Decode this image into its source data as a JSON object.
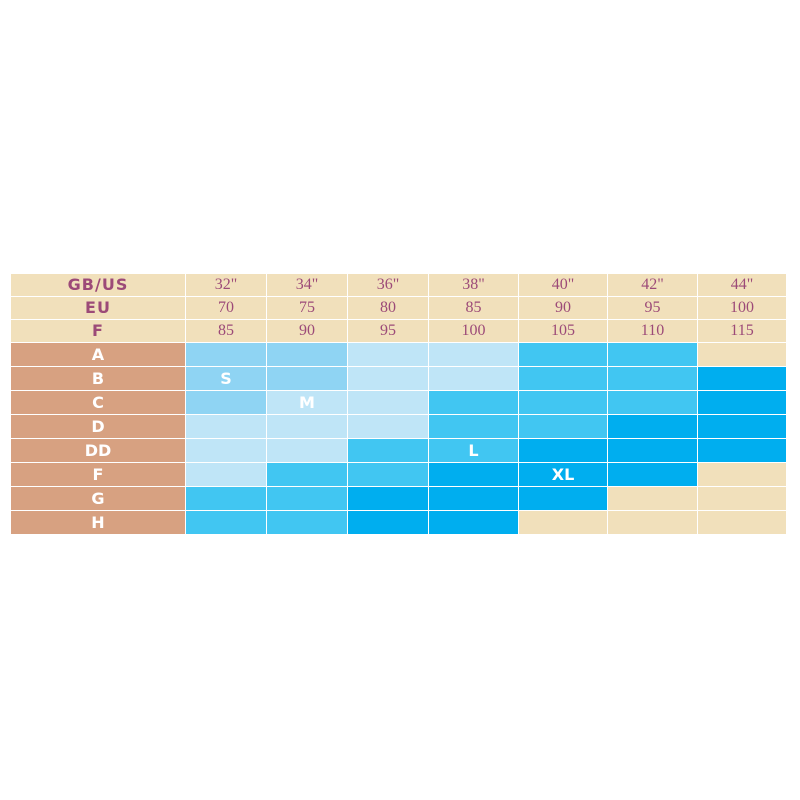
{
  "colors": {
    "S": "#8fd4f3",
    "M": "#bfe5f7",
    "L": "#41c6f2",
    "XL": "#00aeef",
    "none": "#f1e0bb",
    "header_bg": "#f1e0bb",
    "header_text": "#9c4a78",
    "cup_bg": "#d7a181"
  },
  "header_rows": [
    {
      "label": "GB/US",
      "values": [
        "32\"",
        "34\"",
        "36\"",
        "38\"",
        "40\"",
        "42\"",
        "44\""
      ]
    },
    {
      "label": "EU",
      "values": [
        "70",
        "75",
        "80",
        "85",
        "90",
        "95",
        "100"
      ]
    },
    {
      "label": "F",
      "values": [
        "85",
        "90",
        "95",
        "100",
        "105",
        "110",
        "115"
      ]
    }
  ],
  "cup_rows": [
    {
      "cup": "A",
      "cells": [
        "S",
        "S",
        "M",
        "M",
        "L",
        "L",
        "none"
      ]
    },
    {
      "cup": "B",
      "cells": [
        "S",
        "S",
        "M",
        "M",
        "L",
        "L",
        "XL"
      ]
    },
    {
      "cup": "C",
      "cells": [
        "S",
        "M",
        "M",
        "L",
        "L",
        "L",
        "XL"
      ]
    },
    {
      "cup": "D",
      "cells": [
        "M",
        "M",
        "M",
        "L",
        "L",
        "XL",
        "XL"
      ]
    },
    {
      "cup": "DD",
      "cells": [
        "M",
        "M",
        "L",
        "L",
        "XL",
        "XL",
        "XL"
      ]
    },
    {
      "cup": "F",
      "cells": [
        "M",
        "L",
        "L",
        "XL",
        "XL",
        "XL",
        "none"
      ]
    },
    {
      "cup": "G",
      "cells": [
        "L",
        "L",
        "XL",
        "XL",
        "XL",
        "none",
        "none"
      ]
    },
    {
      "cup": "H",
      "cells": [
        "L",
        "L",
        "XL",
        "XL",
        "none",
        "none",
        "none"
      ]
    }
  ],
  "size_labels": [
    {
      "text": "S",
      "row": 1,
      "col": 0
    },
    {
      "text": "M",
      "row": 2,
      "col": 1
    },
    {
      "text": "L",
      "row": 4,
      "col": 3
    },
    {
      "text": "XL",
      "row": 5,
      "col": 4
    }
  ]
}
